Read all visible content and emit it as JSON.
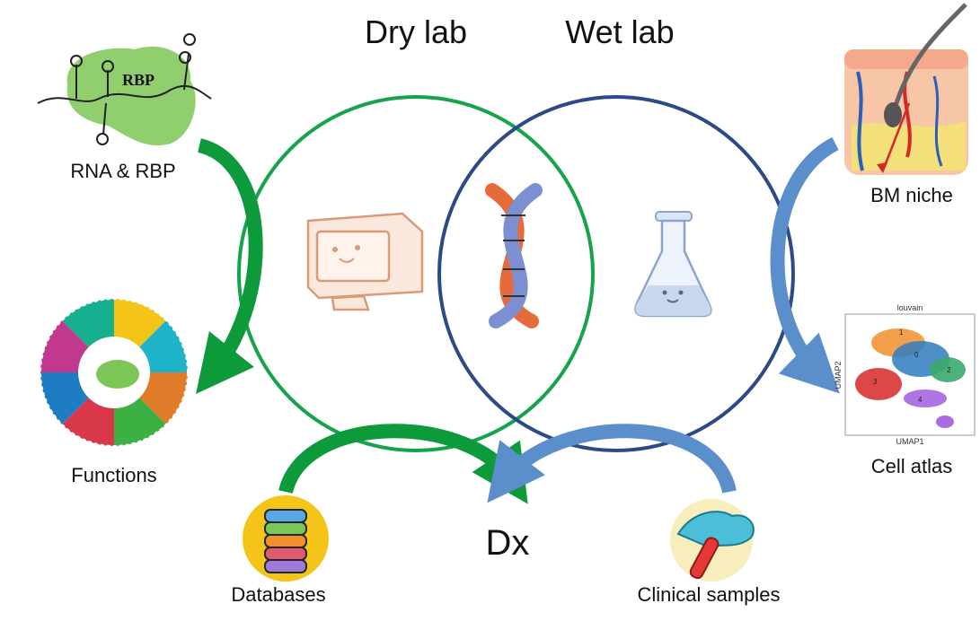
{
  "labels": {
    "dry_lab": "Dry lab",
    "wet_lab": "Wet lab",
    "rna_rbp": "RNA & RBP",
    "rbp_text": "RBP",
    "functions": "Functions",
    "bm_niche": "BM niche",
    "cell_atlas": "Cell atlas",
    "databases": "Databases",
    "clinical_samples": "Clinical samples",
    "dx": "Dx"
  },
  "umap": {
    "title": "louvain",
    "xlabel": "UMAP1",
    "ylabel": "UMAP2",
    "clusters": [
      "0",
      "1",
      "2",
      "3",
      "4"
    ]
  },
  "colors": {
    "dry_circle": "#16a34a",
    "wet_circle": "#2c4a85",
    "green_arrow": "#0d9a3a",
    "blue_arrow": "#5b8fcc",
    "rbp_blob": "#7cc557",
    "db_yellow": "#f4c518"
  }
}
